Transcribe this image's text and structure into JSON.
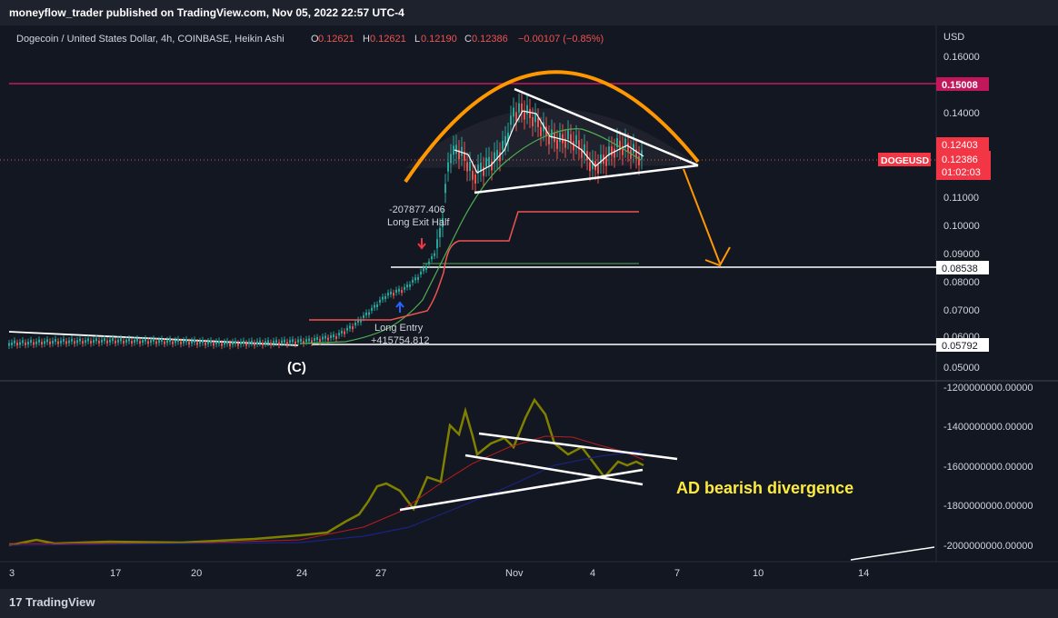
{
  "header": {
    "publish_line": "moneyflow_trader published on TradingView.com, Nov 05, 2022 22:57 UTC-4"
  },
  "legend": {
    "symbol": "Dogecoin / United States Dollar, 4h, COINBASE, Heikin Ashi",
    "o_label": "O",
    "o_value": "0.12621",
    "h_label": "H",
    "h_value": "0.12621",
    "l_label": "L",
    "l_value": "0.12190",
    "c_label": "C",
    "c_value": "0.12386",
    "change": "−0.00107 (−0.85%)"
  },
  "axis": {
    "currency": "USD",
    "price_ticks": [
      "0.16000",
      "0.14000",
      "0.11000",
      "0.10000",
      "0.09000",
      "0.08000",
      "0.07000",
      "0.06000",
      "0.05000"
    ],
    "ad_ticks": [
      "-1200000000.00000",
      "-1400000000.00000",
      "-1600000000.00000",
      "-1800000000.00000",
      "-2000000000.00000"
    ],
    "time_ticks": [
      "3",
      "17",
      "20",
      "24",
      "27",
      "Nov",
      "4",
      "7",
      "10",
      "14"
    ]
  },
  "labels": {
    "price_1500": "0.15008",
    "price_1240": "0.12403",
    "symbol_tag": "DOGEUSD",
    "last_price": "0.12386",
    "countdown": "01:02:03",
    "price_0853": "0.08538",
    "price_0579": "0.05792"
  },
  "annotations": {
    "exit_value": "-207877.406",
    "exit_label": "Long Exit Half",
    "entry_label": "Long Entry",
    "entry_value": "+415754.812",
    "wave_label": "(C)",
    "divergence": "AD bearish divergence"
  },
  "footer": {
    "brand_mark": "17",
    "brand": "TradingView"
  },
  "colors": {
    "background": "#131722",
    "bull": "#26a69a",
    "bear": "#ef5350",
    "magenta": "#c2185b",
    "orange": "#ff9800",
    "olive": "#808000",
    "yellow": "#ffeb3b"
  }
}
